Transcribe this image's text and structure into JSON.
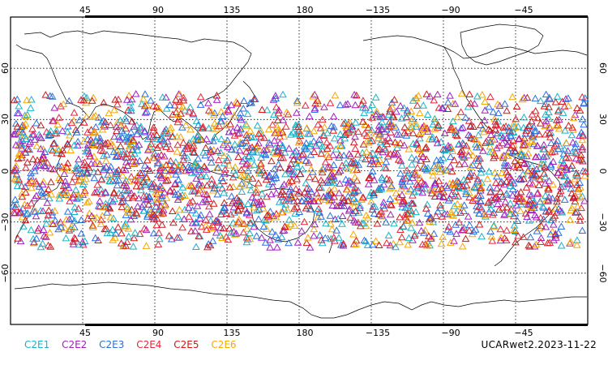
{
  "map": {
    "top_lon_labels": [
      "45",
      "90",
      "135",
      "180",
      "−135",
      "−90",
      "−45"
    ],
    "bottom_lon_labels": [
      "45",
      "90",
      "135",
      "180",
      "−135",
      "−90",
      "−45"
    ],
    "left_lat_labels": [
      "60",
      "30",
      "0",
      "−30",
      "−60"
    ],
    "right_lat_labels": [
      "60",
      "30",
      "0",
      "−30",
      "−60"
    ],
    "lat_extent": [
      -90,
      90
    ],
    "lon_start": 0,
    "grid": "dotted",
    "marker": "open-triangle",
    "occultation_lat_range": [
      -45,
      45
    ]
  },
  "legend": [
    {
      "label": "C2E1",
      "color": "#19b3c8"
    },
    {
      "label": "C2E2",
      "color": "#a020c0"
    },
    {
      "label": "C2E3",
      "color": "#2a6fe0"
    },
    {
      "label": "C2E4",
      "color": "#e0283c"
    },
    {
      "label": "C2E5",
      "color": "#d01818"
    },
    {
      "label": "C2E6",
      "color": "#f5a800"
    }
  ],
  "stamp": "UCARwet2.2023-11-22"
}
